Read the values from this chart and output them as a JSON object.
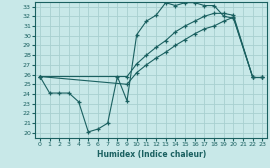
{
  "xlabel": "Humidex (Indice chaleur)",
  "ylabel": "",
  "xlim": [
    -0.5,
    23.5
  ],
  "ylim": [
    19.5,
    33.5
  ],
  "xticks": [
    0,
    1,
    2,
    3,
    4,
    5,
    6,
    7,
    8,
    9,
    10,
    11,
    12,
    13,
    14,
    15,
    16,
    17,
    18,
    19,
    20,
    21,
    22,
    23
  ],
  "yticks": [
    20,
    21,
    22,
    23,
    24,
    25,
    26,
    27,
    28,
    29,
    30,
    31,
    32,
    33
  ],
  "bg_color": "#c8e8e8",
  "grid_color": "#a8d0d0",
  "line_color": "#1a6060",
  "line1_x": [
    0,
    1,
    2,
    3,
    4,
    5,
    6,
    7,
    8,
    9,
    10,
    11,
    12,
    13,
    14,
    15,
    16,
    17,
    18,
    19,
    20,
    22,
    23
  ],
  "line1_y": [
    25.8,
    24.1,
    24.1,
    24.1,
    23.2,
    20.1,
    20.4,
    21.0,
    25.8,
    23.3,
    30.1,
    31.5,
    32.1,
    33.4,
    33.1,
    33.4,
    33.4,
    33.1,
    33.1,
    32.0,
    31.8,
    25.7,
    25.7
  ],
  "line2_x": [
    0,
    9,
    10,
    11,
    12,
    13,
    14,
    15,
    16,
    17,
    18,
    19,
    20,
    22,
    23
  ],
  "line2_y": [
    25.8,
    25.8,
    27.1,
    28.0,
    28.8,
    29.5,
    30.4,
    31.0,
    31.5,
    32.0,
    32.3,
    32.3,
    32.1,
    25.7,
    25.7
  ],
  "line3_x": [
    0,
    9,
    10,
    11,
    12,
    13,
    14,
    15,
    16,
    17,
    18,
    19,
    20,
    22,
    23
  ],
  "line3_y": [
    25.8,
    25.0,
    26.2,
    27.0,
    27.7,
    28.3,
    29.0,
    29.6,
    30.2,
    30.7,
    31.0,
    31.5,
    31.9,
    25.7,
    25.7
  ]
}
